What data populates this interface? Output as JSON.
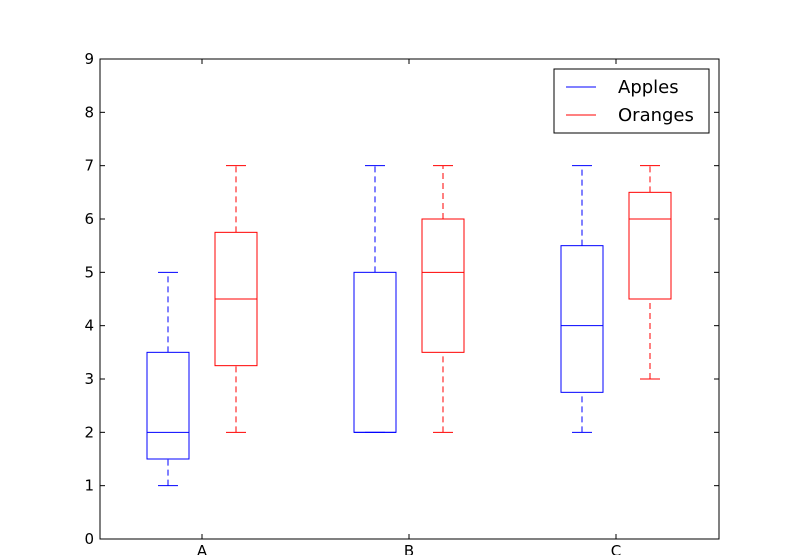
{
  "chart_data": {
    "type": "box",
    "categories": [
      "A",
      "B",
      "C"
    ],
    "ylim": [
      0,
      9
    ],
    "yticks": [
      "0",
      "1",
      "2",
      "3",
      "4",
      "5",
      "6",
      "7",
      "8",
      "9"
    ],
    "grid": false,
    "legend": {
      "position": "top-right"
    },
    "series": [
      {
        "name": "Apples",
        "color": "#0000ff",
        "boxes": [
          {
            "whislo": 1,
            "q1": 1.5,
            "med": 2,
            "q3": 3.5,
            "whishi": 5
          },
          {
            "whislo": 2,
            "q1": 2,
            "med": 2,
            "q3": 5,
            "whishi": 7
          },
          {
            "whislo": 2,
            "q1": 2.75,
            "med": 4,
            "q3": 5.5,
            "whishi": 7
          }
        ]
      },
      {
        "name": "Oranges",
        "color": "#ff0000",
        "boxes": [
          {
            "whislo": 2,
            "q1": 3.25,
            "med": 4.5,
            "q3": 5.75,
            "whishi": 7
          },
          {
            "whislo": 2,
            "q1": 3.5,
            "med": 5,
            "q3": 6,
            "whishi": 7
          },
          {
            "whislo": 3,
            "q1": 4.5,
            "med": 6,
            "q3": 6.5,
            "whishi": 7
          }
        ]
      }
    ]
  }
}
